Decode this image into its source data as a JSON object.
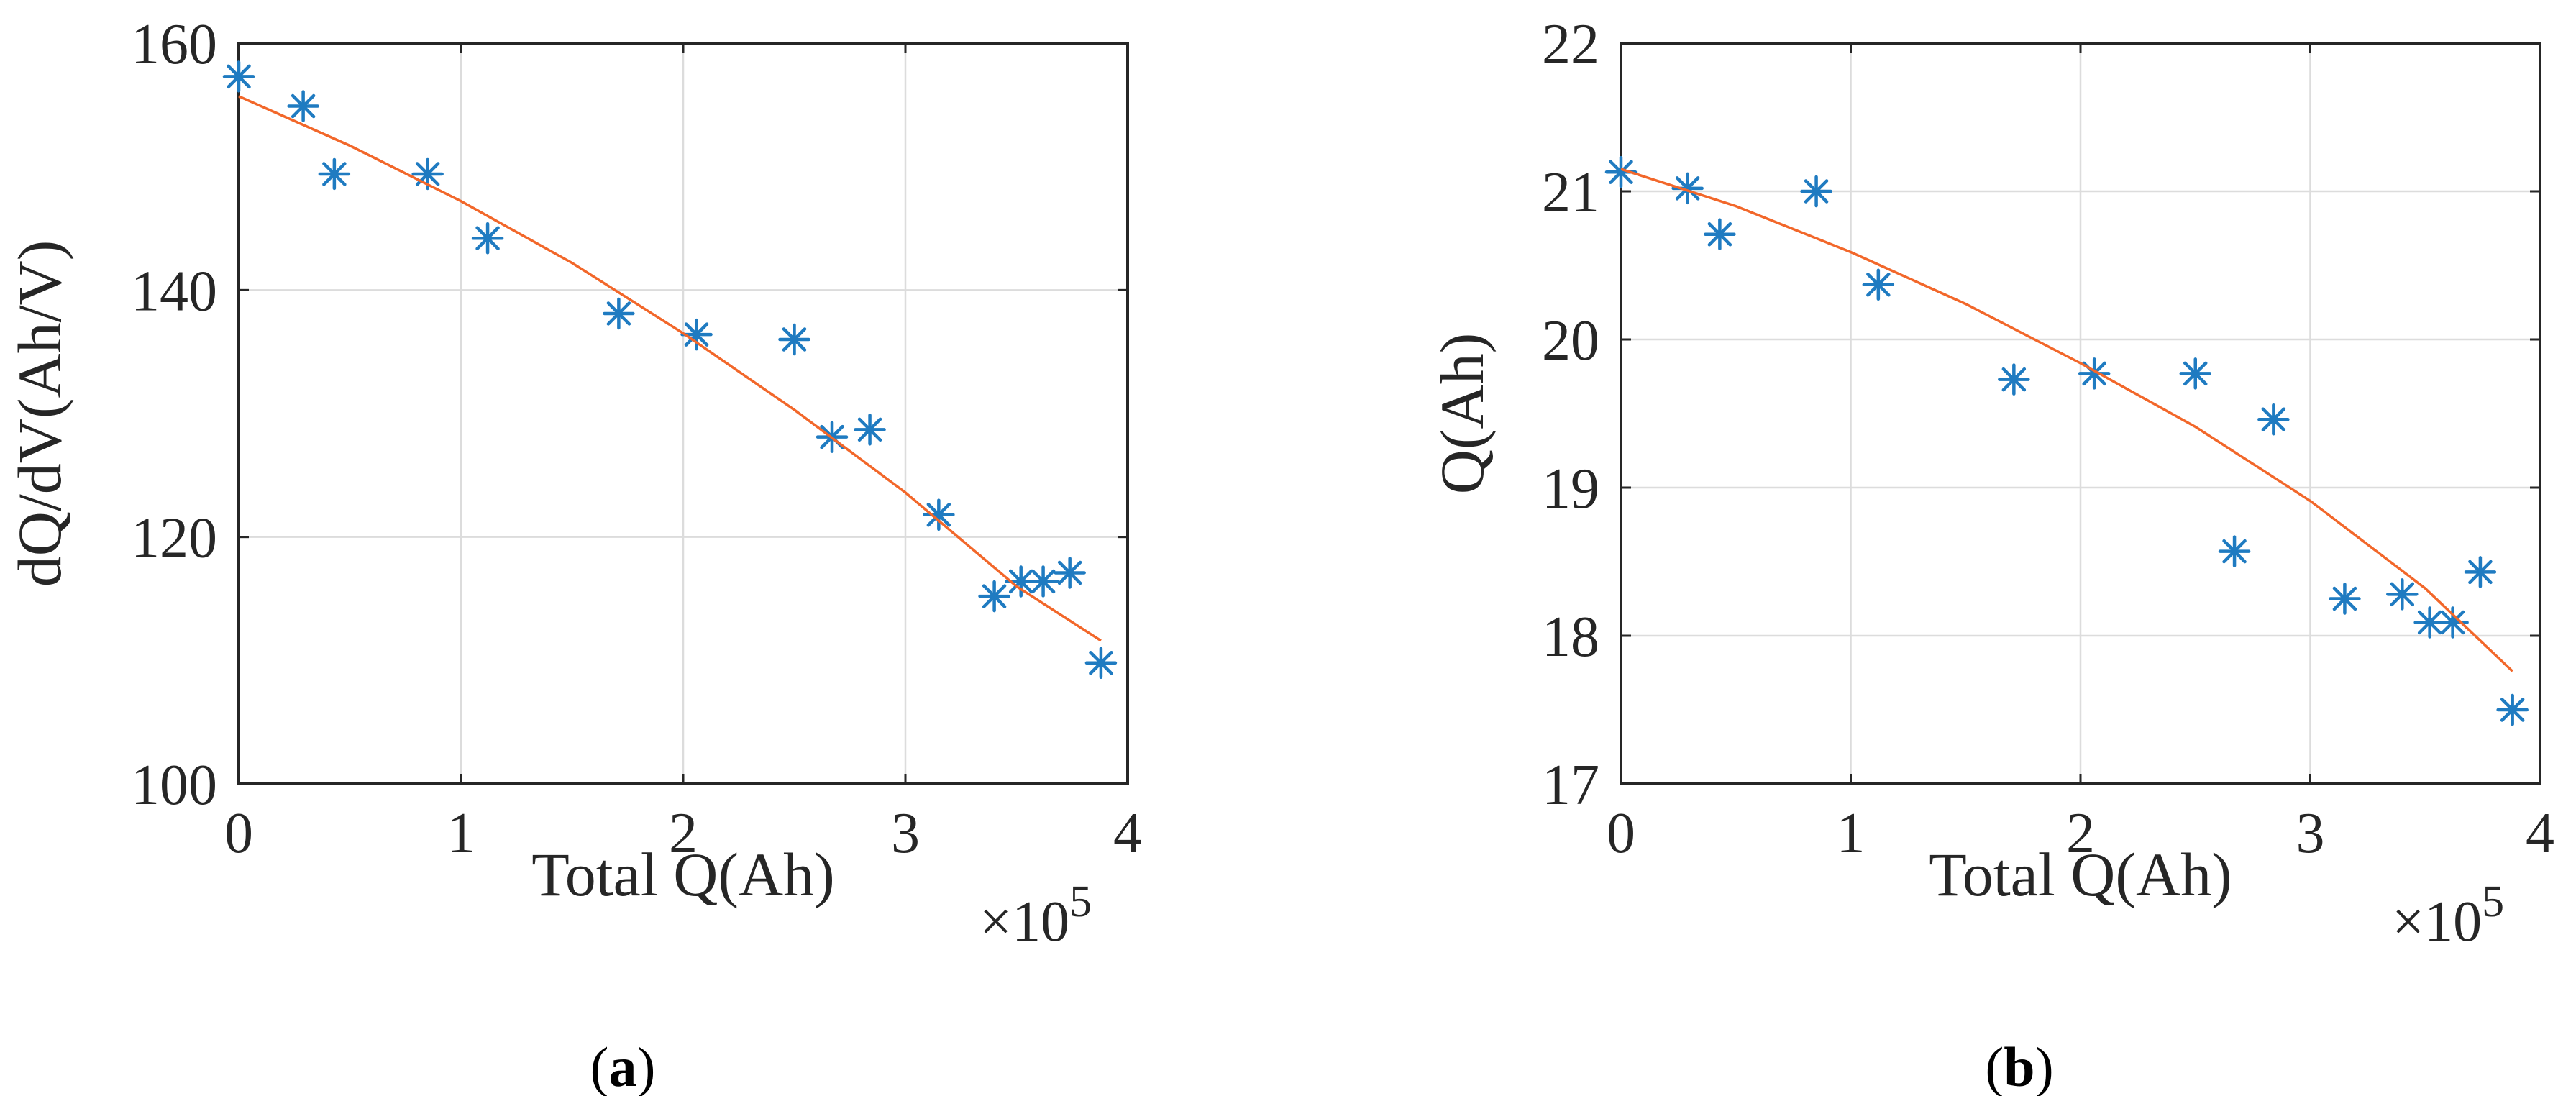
{
  "chart_data": [
    {
      "type": "scatter",
      "panel_label": "a",
      "xlabel": "Total Q(Ah)",
      "ylabel": "dQ/dV(Ah/V)",
      "x_multiplier": "×10",
      "x_exponent": "5",
      "xlim": [
        0,
        4
      ],
      "ylim": [
        100,
        160
      ],
      "xticks": [
        0,
        1,
        2,
        3,
        4
      ],
      "yticks": [
        100,
        120,
        140,
        160
      ],
      "grid": true,
      "series": [
        {
          "marker": "asterisk",
          "color": "#1f7bc1",
          "x": [
            0.0,
            0.29,
            0.43,
            0.85,
            1.12,
            1.71,
            2.06,
            2.5,
            2.67,
            2.84,
            3.15,
            3.4,
            3.52,
            3.62,
            3.74,
            3.88
          ],
          "y": [
            157.3,
            154.9,
            149.4,
            149.4,
            144.2,
            138.1,
            136.4,
            136.0,
            128.1,
            128.7,
            121.8,
            115.2,
            116.4,
            116.4,
            117.1,
            109.8
          ]
        },
        {
          "style": "fit-line",
          "color": "#f2672a",
          "x": [
            0.0,
            0.5,
            1.0,
            1.5,
            2.0,
            2.5,
            3.0,
            3.5,
            3.88
          ],
          "y": [
            155.7,
            151.7,
            147.2,
            142.2,
            136.5,
            130.3,
            123.6,
            116.0,
            111.6
          ]
        }
      ]
    },
    {
      "type": "scatter",
      "panel_label": "b",
      "xlabel": "Total Q(Ah)",
      "ylabel": "Q(Ah)",
      "x_multiplier": "×10",
      "x_exponent": "5",
      "xlim": [
        0,
        4
      ],
      "ylim": [
        17,
        22
      ],
      "xticks": [
        0,
        1,
        2,
        3,
        4
      ],
      "yticks": [
        17,
        18,
        19,
        20,
        21,
        22
      ],
      "grid": true,
      "series": [
        {
          "marker": "asterisk",
          "color": "#1f7bc1",
          "x": [
            0.0,
            0.29,
            0.43,
            0.85,
            1.12,
            1.71,
            2.06,
            2.5,
            2.67,
            2.84,
            3.15,
            3.4,
            3.52,
            3.62,
            3.74,
            3.88
          ],
          "y": [
            21.13,
            21.02,
            20.71,
            21.0,
            20.37,
            19.73,
            19.77,
            19.77,
            18.57,
            19.46,
            18.25,
            18.28,
            18.09,
            18.09,
            18.43,
            17.5
          ]
        },
        {
          "style": "fit-line",
          "color": "#f2672a",
          "x": [
            0.0,
            0.5,
            1.0,
            1.5,
            2.0,
            2.5,
            3.0,
            3.5,
            3.88
          ],
          "y": [
            21.15,
            20.9,
            20.59,
            20.24,
            19.84,
            19.41,
            18.91,
            18.32,
            17.76
          ]
        }
      ]
    }
  ],
  "captions": {
    "a_open": "(",
    "a_letter": "a",
    "a_close": ")",
    "b_open": "(",
    "b_letter": "b",
    "b_close": ")"
  }
}
